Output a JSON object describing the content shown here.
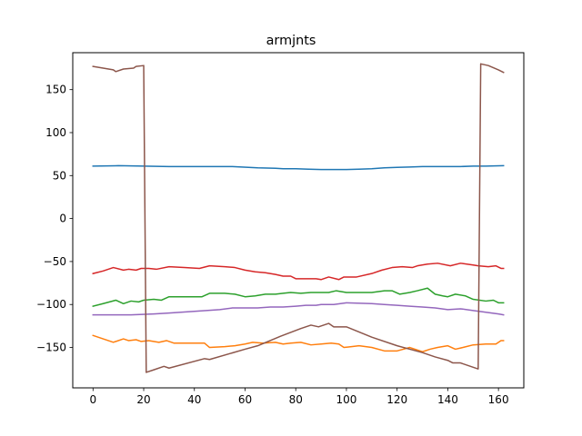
{
  "chart_data": {
    "type": "line",
    "title": "armjnts",
    "xlabel": "",
    "ylabel": "",
    "xlim": [
      -8,
      170
    ],
    "ylim": [
      -197,
      193
    ],
    "x_ticks": [
      0,
      20,
      40,
      60,
      80,
      100,
      120,
      140,
      160
    ],
    "y_ticks": [
      -150,
      -100,
      -50,
      0,
      50,
      100,
      150
    ],
    "grid": false,
    "legend": "none",
    "series": [
      {
        "color": "#1f77b4",
        "points": [
          [
            0,
            61
          ],
          [
            10,
            61.5
          ],
          [
            20,
            61
          ],
          [
            30,
            60.5
          ],
          [
            40,
            60.5
          ],
          [
            50,
            60.5
          ],
          [
            55,
            60.5
          ],
          [
            65,
            59
          ],
          [
            72,
            58.5
          ],
          [
            75,
            58
          ],
          [
            80,
            58
          ],
          [
            85,
            57.5
          ],
          [
            90,
            57
          ],
          [
            95,
            57
          ],
          [
            100,
            57
          ],
          [
            105,
            57.5
          ],
          [
            110,
            58
          ],
          [
            115,
            59
          ],
          [
            120,
            59.5
          ],
          [
            125,
            60
          ],
          [
            130,
            60.5
          ],
          [
            135,
            60.5
          ],
          [
            140,
            60.5
          ],
          [
            145,
            60.5
          ],
          [
            150,
            61
          ],
          [
            155,
            61
          ],
          [
            162,
            61.5
          ]
        ]
      },
      {
        "color": "#ff7f0e",
        "points": [
          [
            0,
            -136
          ],
          [
            4,
            -140
          ],
          [
            8,
            -144
          ],
          [
            12,
            -140
          ],
          [
            14,
            -142
          ],
          [
            17,
            -141
          ],
          [
            19,
            -143
          ],
          [
            22,
            -142
          ],
          [
            26,
            -144
          ],
          [
            29,
            -142
          ],
          [
            32,
            -145
          ],
          [
            36,
            -145
          ],
          [
            40,
            -145
          ],
          [
            44,
            -145
          ],
          [
            46,
            -150
          ],
          [
            52,
            -149
          ],
          [
            56,
            -148
          ],
          [
            60,
            -146
          ],
          [
            63,
            -144
          ],
          [
            67,
            -145
          ],
          [
            72,
            -144
          ],
          [
            75,
            -146
          ],
          [
            78,
            -145
          ],
          [
            82,
            -144
          ],
          [
            86,
            -147
          ],
          [
            90,
            -146
          ],
          [
            94,
            -145
          ],
          [
            97,
            -146
          ],
          [
            99,
            -150
          ],
          [
            102,
            -149
          ],
          [
            105,
            -148
          ],
          [
            110,
            -150
          ],
          [
            115,
            -154
          ],
          [
            120,
            -154
          ],
          [
            125,
            -150
          ],
          [
            130,
            -155
          ],
          [
            133,
            -152
          ],
          [
            136,
            -150
          ],
          [
            140,
            -148
          ],
          [
            143,
            -152
          ],
          [
            146,
            -150
          ],
          [
            150,
            -147
          ],
          [
            155,
            -146
          ],
          [
            159,
            -146
          ],
          [
            161,
            -142
          ],
          [
            162,
            -142
          ]
        ]
      },
      {
        "color": "#2ca02c",
        "points": [
          [
            0,
            -102
          ],
          [
            4,
            -99
          ],
          [
            9,
            -95
          ],
          [
            12,
            -99
          ],
          [
            15,
            -96
          ],
          [
            18,
            -97
          ],
          [
            20,
            -95
          ],
          [
            24,
            -94
          ],
          [
            27,
            -95
          ],
          [
            30,
            -91
          ],
          [
            35,
            -91
          ],
          [
            40,
            -91
          ],
          [
            43,
            -91
          ],
          [
            46,
            -87
          ],
          [
            52,
            -87
          ],
          [
            56,
            -88
          ],
          [
            60,
            -91
          ],
          [
            64,
            -90
          ],
          [
            68,
            -88
          ],
          [
            72,
            -88
          ],
          [
            75,
            -87
          ],
          [
            78,
            -86
          ],
          [
            82,
            -87
          ],
          [
            86,
            -86
          ],
          [
            90,
            -86
          ],
          [
            93,
            -86
          ],
          [
            96,
            -84
          ],
          [
            100,
            -86
          ],
          [
            104,
            -86
          ],
          [
            110,
            -86
          ],
          [
            115,
            -84
          ],
          [
            118,
            -84
          ],
          [
            121,
            -88
          ],
          [
            125,
            -86
          ],
          [
            128,
            -84
          ],
          [
            132,
            -81
          ],
          [
            135,
            -88
          ],
          [
            138,
            -90
          ],
          [
            140,
            -91
          ],
          [
            143,
            -88
          ],
          [
            147,
            -90
          ],
          [
            150,
            -94
          ],
          [
            155,
            -96
          ],
          [
            158,
            -95
          ],
          [
            160,
            -98
          ],
          [
            162,
            -98
          ]
        ]
      },
      {
        "color": "#d62728",
        "points": [
          [
            0,
            -64
          ],
          [
            4,
            -61
          ],
          [
            8,
            -57
          ],
          [
            12,
            -60
          ],
          [
            14,
            -59
          ],
          [
            17,
            -60
          ],
          [
            19,
            -58
          ],
          [
            22,
            -58
          ],
          [
            25,
            -59
          ],
          [
            30,
            -56
          ],
          [
            36,
            -57
          ],
          [
            42,
            -58
          ],
          [
            46,
            -55
          ],
          [
            52,
            -56
          ],
          [
            56,
            -57
          ],
          [
            60,
            -60
          ],
          [
            64,
            -62
          ],
          [
            68,
            -63
          ],
          [
            72,
            -65
          ],
          [
            75,
            -67
          ],
          [
            78,
            -67
          ],
          [
            80,
            -70
          ],
          [
            84,
            -70
          ],
          [
            88,
            -70
          ],
          [
            90,
            -71
          ],
          [
            93,
            -68
          ],
          [
            97,
            -71
          ],
          [
            99,
            -68
          ],
          [
            104,
            -68
          ],
          [
            110,
            -64
          ],
          [
            114,
            -60
          ],
          [
            118,
            -57
          ],
          [
            122,
            -56
          ],
          [
            126,
            -57
          ],
          [
            128,
            -55
          ],
          [
            132,
            -53
          ],
          [
            136,
            -52
          ],
          [
            141,
            -55
          ],
          [
            145,
            -52
          ],
          [
            150,
            -54
          ],
          [
            152,
            -55
          ],
          [
            156,
            -56
          ],
          [
            159,
            -55
          ],
          [
            161,
            -58
          ],
          [
            162,
            -58
          ]
        ]
      },
      {
        "color": "#9467bd",
        "points": [
          [
            0,
            -112
          ],
          [
            9,
            -112
          ],
          [
            15,
            -112
          ],
          [
            24,
            -111
          ],
          [
            30,
            -110
          ],
          [
            40,
            -108
          ],
          [
            50,
            -106
          ],
          [
            55,
            -104
          ],
          [
            65,
            -104
          ],
          [
            70,
            -103
          ],
          [
            75,
            -103
          ],
          [
            80,
            -102
          ],
          [
            84,
            -101
          ],
          [
            88,
            -101
          ],
          [
            90,
            -100
          ],
          [
            95,
            -100
          ],
          [
            100,
            -98
          ],
          [
            110,
            -99
          ],
          [
            115,
            -100
          ],
          [
            120,
            -101
          ],
          [
            125,
            -102
          ],
          [
            130,
            -103
          ],
          [
            135,
            -104
          ],
          [
            140,
            -106
          ],
          [
            145,
            -105
          ],
          [
            150,
            -107
          ],
          [
            155,
            -109
          ],
          [
            160,
            -111
          ],
          [
            162,
            -112
          ]
        ]
      },
      {
        "color": "#8c564b",
        "points": [
          [
            0,
            177
          ],
          [
            4,
            175
          ],
          [
            8,
            173
          ],
          [
            9,
            171
          ],
          [
            12,
            174
          ],
          [
            16,
            175
          ],
          [
            17,
            177
          ],
          [
            20,
            178
          ],
          [
            21,
            -179
          ],
          [
            24,
            -176
          ],
          [
            28,
            -172
          ],
          [
            30,
            -174
          ],
          [
            44,
            -163
          ],
          [
            46,
            -164
          ],
          [
            60,
            -152
          ],
          [
            65,
            -148
          ],
          [
            74,
            -137
          ],
          [
            82,
            -128
          ],
          [
            86,
            -124
          ],
          [
            89,
            -126
          ],
          [
            93,
            -122
          ],
          [
            95,
            -126
          ],
          [
            100,
            -126
          ],
          [
            110,
            -138
          ],
          [
            120,
            -148
          ],
          [
            130,
            -156
          ],
          [
            135,
            -161
          ],
          [
            140,
            -165
          ],
          [
            142,
            -168
          ],
          [
            145,
            -168
          ],
          [
            150,
            -173
          ],
          [
            152,
            -175
          ],
          [
            153,
            180
          ],
          [
            156,
            178
          ],
          [
            160,
            173
          ],
          [
            162,
            170
          ]
        ]
      }
    ]
  }
}
